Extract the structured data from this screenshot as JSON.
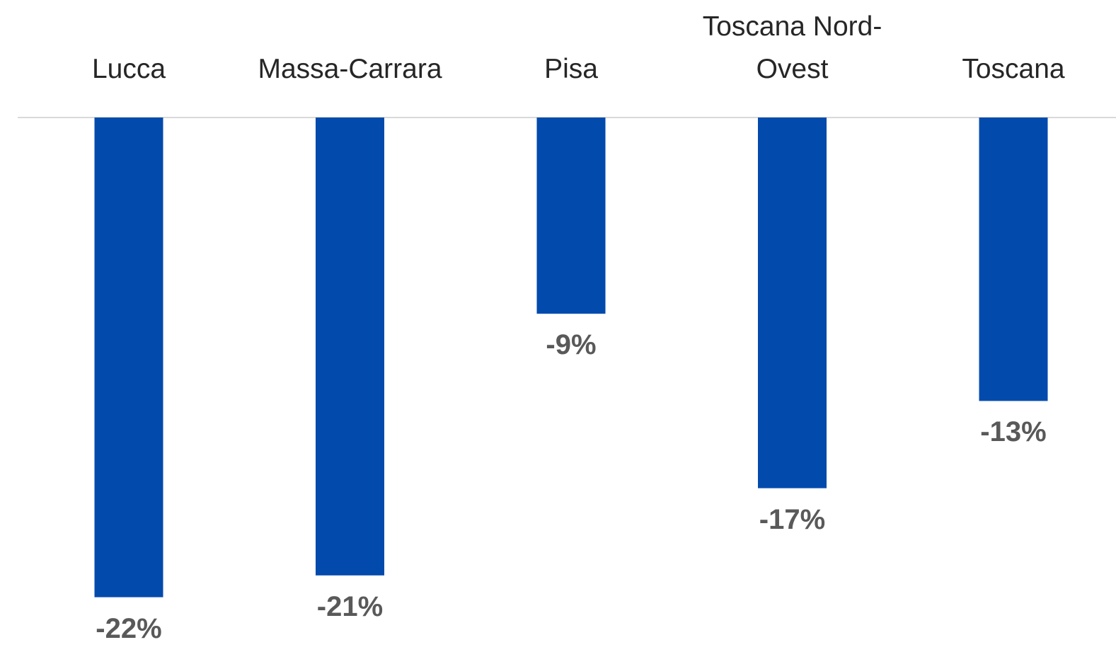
{
  "chart_data": {
    "type": "bar",
    "categories": [
      "Lucca",
      "Massa-Carrara",
      "Pisa",
      "Toscana Nord-Ovest",
      "Toscana"
    ],
    "values": [
      -22,
      -21,
      -9,
      -17,
      -13
    ],
    "value_labels": [
      "-22%",
      "-21%",
      "-9%",
      "-17%",
      "-13%"
    ],
    "color": "#034aad"
  }
}
